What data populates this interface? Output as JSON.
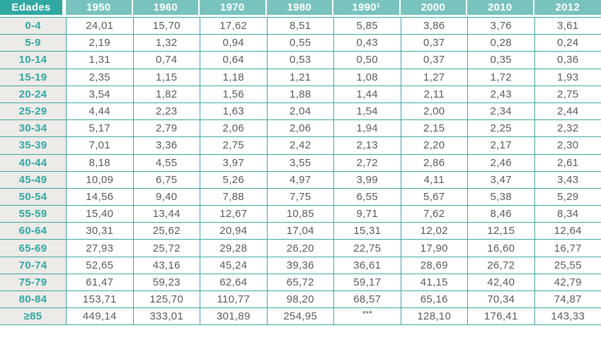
{
  "table": {
    "header": {
      "age_column_label": "Edades",
      "year_columns": [
        "1950",
        "1960",
        "1970",
        "1980",
        "1990¹",
        "2000",
        "2010",
        "2012"
      ]
    },
    "rows": [
      {
        "age": "0-4",
        "values": [
          "24,01",
          "15,70",
          "17,62",
          "8,51",
          "5,85",
          "3,86",
          "3,76",
          "3,61"
        ]
      },
      {
        "age": "5-9",
        "values": [
          "2,19",
          "1,32",
          "0,94",
          "0,55",
          "0,43",
          "0,37",
          "0,28",
          "0,24"
        ]
      },
      {
        "age": "10-14",
        "values": [
          "1,31",
          "0,74",
          "0,64",
          "0,53",
          "0,50",
          "0,37",
          "0,35",
          "0,36"
        ]
      },
      {
        "age": "15-19",
        "values": [
          "2,35",
          "1,15",
          "1,18",
          "1,21",
          "1,08",
          "1,27",
          "1,72",
          "1,93"
        ]
      },
      {
        "age": "20-24",
        "values": [
          "3,54",
          "1,82",
          "1,56",
          "1,88",
          "1,44",
          "2,11",
          "2,43",
          "2,75"
        ]
      },
      {
        "age": "25-29",
        "values": [
          "4,44",
          "2,23",
          "1,63",
          "2,04",
          "1,54",
          "2,00",
          "2,34",
          "2,44"
        ]
      },
      {
        "age": "30-34",
        "values": [
          "5,17",
          "2,79",
          "2,06",
          "2,06",
          "1,94",
          "2,15",
          "2,25",
          "2,32"
        ]
      },
      {
        "age": "35-39",
        "values": [
          "7,01",
          "3,36",
          "2,75",
          "2,42",
          "2,13",
          "2,20",
          "2,17",
          "2,30"
        ]
      },
      {
        "age": "40-44",
        "values": [
          "8,18",
          "4,55",
          "3,97",
          "3,55",
          "2,72",
          "2,86",
          "2,46",
          "2,61"
        ]
      },
      {
        "age": "45-49",
        "values": [
          "10,09",
          "6,75",
          "5,26",
          "4,97",
          "3,99",
          "4,11",
          "3,47",
          "3,43"
        ]
      },
      {
        "age": "50-54",
        "values": [
          "14,56",
          "9,40",
          "7,88",
          "7,75",
          "6,55",
          "5,67",
          "5,38",
          "5,29"
        ]
      },
      {
        "age": "55-59",
        "values": [
          "15,40",
          "13,44",
          "12,67",
          "10,85",
          "9,71",
          "7,62",
          "8,46",
          "8,34"
        ]
      },
      {
        "age": "60-64",
        "values": [
          "30,31",
          "25,62",
          "20,94",
          "17,04",
          "15,31",
          "12,02",
          "12,15",
          "12,64"
        ]
      },
      {
        "age": "65-69",
        "values": [
          "27,93",
          "25,72",
          "29,28",
          "26,20",
          "22,75",
          "17,90",
          "16,60",
          "16,77"
        ]
      },
      {
        "age": "70-74",
        "values": [
          "52,65",
          "43,16",
          "45,24",
          "39,36",
          "36,61",
          "28,69",
          "26,72",
          "25,55"
        ]
      },
      {
        "age": "75-79",
        "values": [
          "61,47",
          "59,23",
          "62,64",
          "65,72",
          "59,17",
          "41,15",
          "42,40",
          "42,79"
        ]
      },
      {
        "age": "80-84",
        "values": [
          "153,71",
          "125,70",
          "110,77",
          "98,20",
          "68,57",
          "65,16",
          "70,34",
          "74,87"
        ]
      },
      {
        "age": "≥85",
        "values": [
          "449,14",
          "333,01",
          "301,89",
          "254,95",
          "***",
          "128,10",
          "176,41",
          "143,33"
        ]
      }
    ],
    "missing_value_marker": "***"
  },
  "chart_data": {
    "type": "table",
    "title": "",
    "row_header_label": "Edades",
    "categories": [
      "0-4",
      "5-9",
      "10-14",
      "15-19",
      "20-24",
      "25-29",
      "30-34",
      "35-39",
      "40-44",
      "45-49",
      "50-54",
      "55-59",
      "60-64",
      "65-69",
      "70-74",
      "75-79",
      "80-84",
      "≥85"
    ],
    "series": [
      {
        "name": "1950",
        "values": [
          24.01,
          2.19,
          1.31,
          2.35,
          3.54,
          4.44,
          5.17,
          7.01,
          8.18,
          10.09,
          14.56,
          15.4,
          30.31,
          27.93,
          52.65,
          61.47,
          153.71,
          449.14
        ]
      },
      {
        "name": "1960",
        "values": [
          15.7,
          1.32,
          0.74,
          1.15,
          1.82,
          2.23,
          2.79,
          3.36,
          4.55,
          6.75,
          9.4,
          13.44,
          25.62,
          25.72,
          43.16,
          59.23,
          125.7,
          333.01
        ]
      },
      {
        "name": "1970",
        "values": [
          17.62,
          0.94,
          0.64,
          1.18,
          1.56,
          1.63,
          2.06,
          2.75,
          3.97,
          5.26,
          7.88,
          12.67,
          20.94,
          29.28,
          45.24,
          62.64,
          110.77,
          301.89
        ]
      },
      {
        "name": "1980",
        "values": [
          8.51,
          0.55,
          0.53,
          1.21,
          1.88,
          2.04,
          2.06,
          2.42,
          3.55,
          4.97,
          7.75,
          10.85,
          17.04,
          26.2,
          39.36,
          65.72,
          98.2,
          254.95
        ]
      },
      {
        "name": "1990¹",
        "values": [
          5.85,
          0.43,
          0.5,
          1.08,
          1.44,
          1.54,
          1.94,
          2.13,
          2.72,
          3.99,
          6.55,
          9.71,
          15.31,
          22.75,
          36.61,
          59.17,
          68.57,
          null
        ]
      },
      {
        "name": "2000",
        "values": [
          3.86,
          0.37,
          0.37,
          1.27,
          2.11,
          2.0,
          2.15,
          2.2,
          2.86,
          4.11,
          5.67,
          7.62,
          12.02,
          17.9,
          28.69,
          41.15,
          65.16,
          128.1
        ]
      },
      {
        "name": "2010",
        "values": [
          3.76,
          0.28,
          0.35,
          1.72,
          2.43,
          2.34,
          2.25,
          2.17,
          2.46,
          3.47,
          5.38,
          8.46,
          12.15,
          16.6,
          26.72,
          42.4,
          70.34,
          176.41
        ]
      },
      {
        "name": "2012",
        "values": [
          3.61,
          0.24,
          0.36,
          1.93,
          2.75,
          2.44,
          2.32,
          2.3,
          2.61,
          3.43,
          5.29,
          8.34,
          12.64,
          16.77,
          25.55,
          42.79,
          74.87,
          143.33
        ]
      }
    ],
    "decimal_separator": ",",
    "missing_value_marker": "***",
    "grid": true,
    "legend_position": "none"
  },
  "colors": {
    "header_dark_teal": "#2fa9a2",
    "header_light_teal": "#78c3be",
    "age_label_bg": "#edebe8",
    "age_label_text": "#2fa9a2",
    "cell_text": "#58595b",
    "grid_border": "#3aa7a2",
    "cell_bg": "#ffffff"
  }
}
